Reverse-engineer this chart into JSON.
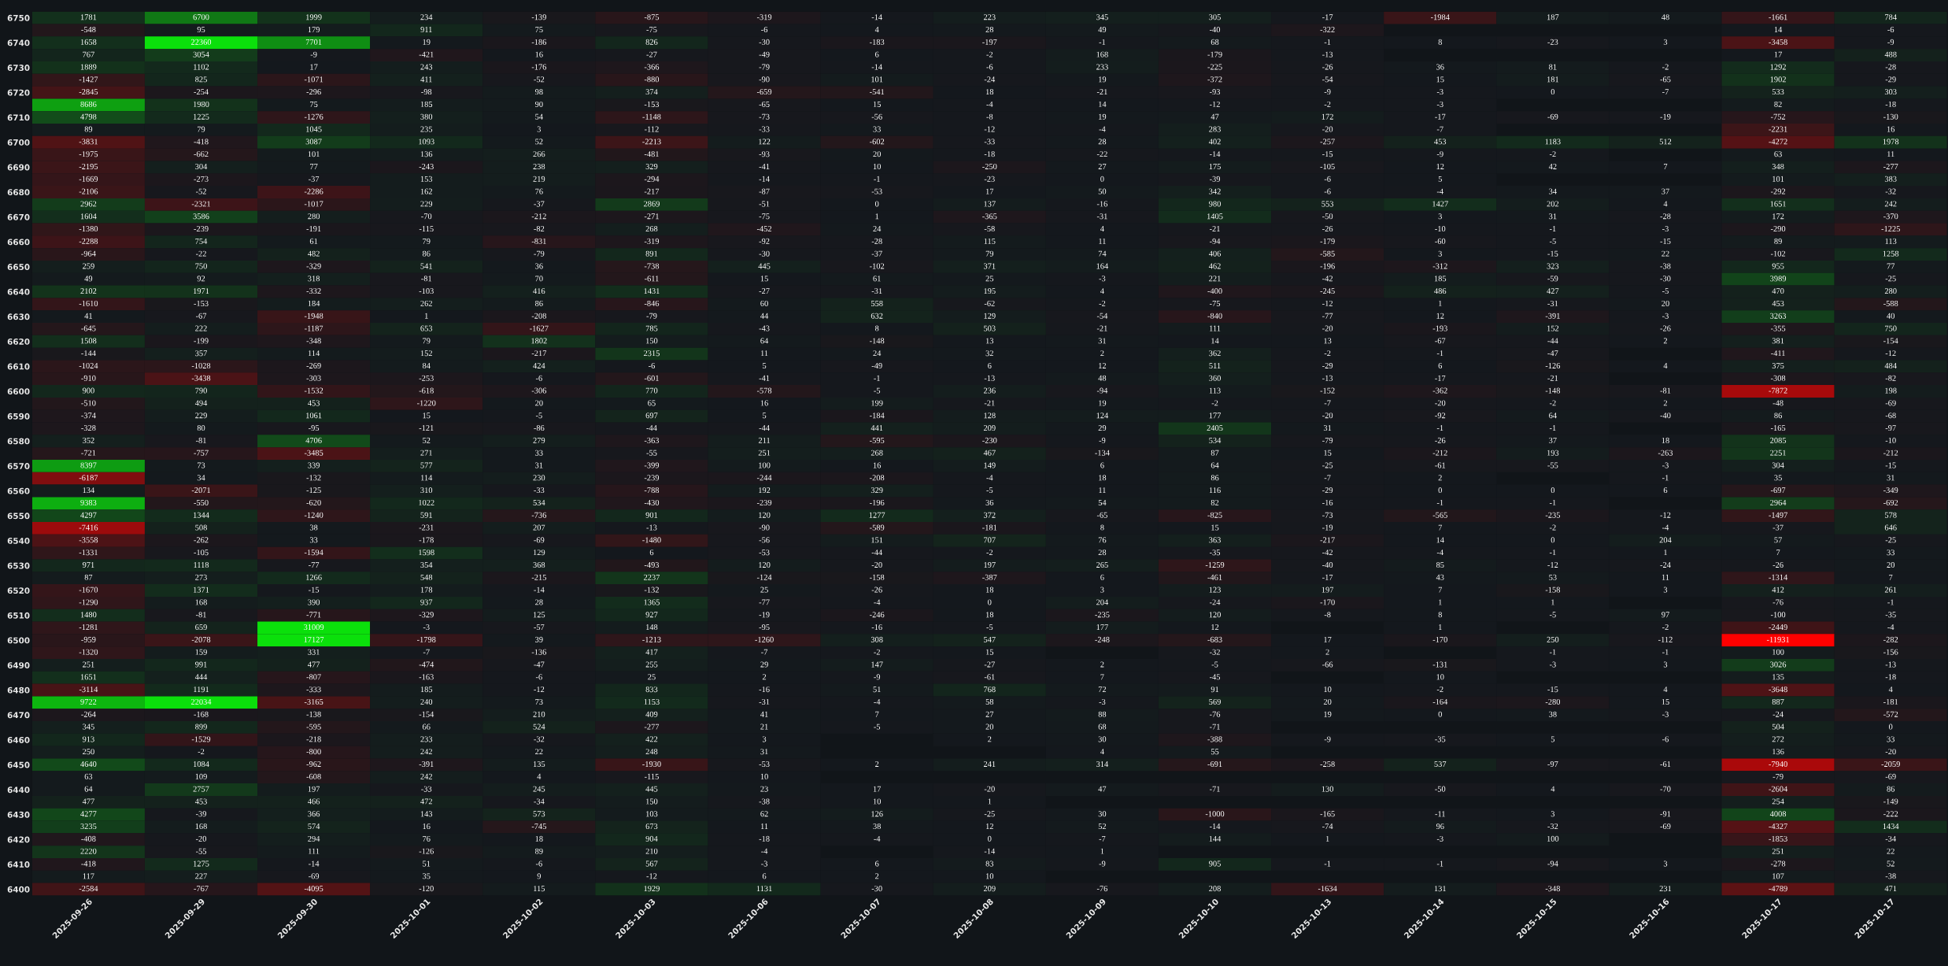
{
  "chart_data": {
    "type": "heatmap",
    "categories": [
      "2025-09-26",
      "2025-09-29",
      "2025-09-30",
      "2025-10-01",
      "2025-10-02",
      "2025-10-03",
      "2025-10-06",
      "2025-10-07",
      "2025-10-08",
      "2025-10-09",
      "2025-10-10",
      "2025-10-13",
      "2025-10-14",
      "2025-10-15",
      "2025-10-16",
      "2025-10-17",
      "2025-10-17"
    ],
    "y_categories": [
      "6750",
      null,
      "6740",
      null,
      "6730",
      null,
      "6720",
      null,
      "6710",
      null,
      "6700",
      null,
      "6690",
      null,
      "6680",
      null,
      "6670",
      null,
      "6660",
      null,
      "6650",
      null,
      "6640",
      null,
      "6630",
      null,
      "6620",
      null,
      "6610",
      null,
      "6600",
      null,
      "6590",
      null,
      "6580",
      null,
      "6570",
      null,
      "6560",
      null,
      "6550",
      null,
      "6540",
      null,
      "6530",
      null,
      "6520",
      null,
      "6510",
      null,
      "6500",
      null,
      "6490",
      null,
      "6480",
      null,
      "6470",
      null,
      "6460",
      null,
      "6450",
      null,
      "6440",
      null,
      "6430",
      null,
      "6420",
      null,
      "6410",
      null,
      "6400"
    ],
    "data_labels": true,
    "cells": [
      [
        1781,
        6700,
        1999,
        234,
        -139,
        -875,
        -319,
        -14,
        223,
        345,
        305,
        -17,
        -1984,
        187,
        48,
        -1661,
        784
      ],
      [
        -548,
        95,
        179,
        911,
        75,
        -75,
        -6,
        4,
        28,
        49,
        -40,
        -322,
        null,
        null,
        null,
        14,
        -6
      ],
      [
        1658,
        22360,
        7701,
        19,
        -186,
        826,
        -30,
        -183,
        -197,
        -1,
        68,
        -1,
        8,
        -23,
        3,
        -3458,
        -9
      ],
      [
        767,
        3054,
        -9,
        -421,
        16,
        -27,
        -49,
        6,
        -2,
        168,
        -179,
        -13,
        null,
        null,
        null,
        17,
        488
      ],
      [
        1889,
        1102,
        17,
        243,
        -176,
        -366,
        -79,
        -14,
        -6,
        233,
        -225,
        -26,
        36,
        81,
        -2,
        1292,
        -28
      ],
      [
        -1427,
        825,
        -1071,
        411,
        -52,
        -880,
        -90,
        101,
        -24,
        19,
        -372,
        -54,
        15,
        181,
        -65,
        1902,
        -29
      ],
      [
        -2845,
        -254,
        -296,
        -98,
        98,
        374,
        -659,
        -541,
        18,
        -21,
        -93,
        -9,
        -3,
        0,
        -7,
        533,
        303
      ],
      [
        8686,
        1980,
        75,
        185,
        90,
        -153,
        -65,
        15,
        -4,
        14,
        -12,
        -2,
        -3,
        null,
        null,
        82,
        -18
      ],
      [
        4798,
        1225,
        -1276,
        380,
        54,
        -1148,
        -73,
        -56,
        -8,
        19,
        47,
        172,
        -17,
        -69,
        -19,
        -752,
        -130
      ],
      [
        89,
        79,
        1045,
        235,
        3,
        -112,
        -33,
        33,
        -12,
        -4,
        283,
        -20,
        -7,
        null,
        null,
        -2231,
        16
      ],
      [
        -3831,
        -418,
        3087,
        1093,
        52,
        -2213,
        122,
        -602,
        -33,
        28,
        402,
        -257,
        453,
        1183,
        512,
        -4272,
        1978
      ],
      [
        -1975,
        -662,
        101,
        136,
        266,
        -481,
        -93,
        20,
        -18,
        -22,
        -14,
        -15,
        -9,
        -2,
        null,
        63,
        11
      ],
      [
        -2195,
        304,
        77,
        -243,
        238,
        329,
        -41,
        10,
        -250,
        27,
        175,
        -105,
        12,
        42,
        7,
        348,
        -277
      ],
      [
        -1669,
        -273,
        -37,
        153,
        219,
        -294,
        -14,
        -1,
        -23,
        0,
        -39,
        -6,
        5,
        null,
        null,
        101,
        383
      ],
      [
        -2106,
        -52,
        -2286,
        162,
        76,
        -217,
        -87,
        -53,
        17,
        50,
        342,
        -6,
        -4,
        34,
        37,
        -292,
        -32
      ],
      [
        2962,
        -2321,
        -1017,
        229,
        -37,
        2869,
        -51,
        0,
        137,
        -16,
        980,
        553,
        1427,
        202,
        4,
        1651,
        242
      ],
      [
        1604,
        3586,
        280,
        -70,
        -212,
        -271,
        -75,
        1,
        -365,
        -31,
        1405,
        -50,
        3,
        31,
        -28,
        172,
        -370
      ],
      [
        -1380,
        -239,
        -191,
        -115,
        -82,
        268,
        -452,
        24,
        -58,
        4,
        -21,
        -26,
        -10,
        -1,
        -3,
        -290,
        -1225
      ],
      [
        -2288,
        754,
        61,
        79,
        -831,
        -319,
        -92,
        -28,
        115,
        11,
        -94,
        -179,
        -60,
        -5,
        -15,
        89,
        113
      ],
      [
        -964,
        -22,
        482,
        86,
        -79,
        891,
        -30,
        -37,
        79,
        74,
        406,
        -585,
        3,
        -15,
        22,
        -102,
        1258
      ],
      [
        259,
        750,
        -329,
        541,
        36,
        -738,
        445,
        -102,
        371,
        164,
        462,
        -196,
        -312,
        323,
        -38,
        955,
        77
      ],
      [
        49,
        92,
        318,
        -81,
        70,
        -611,
        15,
        61,
        25,
        -3,
        221,
        -42,
        185,
        -59,
        -30,
        3989,
        -25
      ],
      [
        2102,
        1971,
        -332,
        -103,
        416,
        1431,
        -27,
        -31,
        195,
        4,
        -400,
        -245,
        486,
        427,
        -5,
        470,
        280
      ],
      [
        -1610,
        -153,
        184,
        262,
        86,
        -846,
        60,
        558,
        -62,
        -2,
        -75,
        -12,
        1,
        -31,
        20,
        453,
        -588
      ],
      [
        41,
        -67,
        -1948,
        1,
        -208,
        -79,
        44,
        632,
        129,
        -54,
        -840,
        -77,
        12,
        -391,
        -3,
        3263,
        40
      ],
      [
        -645,
        222,
        -1187,
        653,
        -1627,
        785,
        -43,
        8,
        503,
        -21,
        111,
        -20,
        -193,
        152,
        -26,
        -355,
        750
      ],
      [
        1508,
        -199,
        -348,
        79,
        1802,
        150,
        64,
        -148,
        13,
        31,
        14,
        13,
        -67,
        -44,
        2,
        381,
        -154
      ],
      [
        -144,
        357,
        114,
        152,
        -217,
        2315,
        11,
        24,
        32,
        2,
        362,
        -2,
        -1,
        -47,
        null,
        -411,
        -12
      ],
      [
        -1024,
        -1028,
        -269,
        84,
        424,
        -6,
        5,
        -49,
        6,
        12,
        511,
        -29,
        6,
        -126,
        4,
        375,
        484
      ],
      [
        -910,
        -3438,
        -303,
        -253,
        -6,
        -601,
        -41,
        -1,
        -13,
        48,
        360,
        -13,
        -17,
        -21,
        null,
        -308,
        -82
      ],
      [
        900,
        790,
        -1532,
        -618,
        -306,
        770,
        -578,
        -5,
        236,
        -94,
        113,
        -152,
        -362,
        -148,
        -81,
        -7872,
        198
      ],
      [
        -510,
        494,
        453,
        -1220,
        20,
        65,
        16,
        199,
        -21,
        19,
        -2,
        -7,
        -20,
        -2,
        2,
        -48,
        -69
      ],
      [
        -374,
        229,
        1061,
        15,
        -5,
        697,
        5,
        -184,
        128,
        124,
        177,
        -20,
        -92,
        64,
        -40,
        86,
        -68
      ],
      [
        -328,
        80,
        -95,
        -121,
        -86,
        -44,
        -44,
        441,
        209,
        29,
        2405,
        31,
        -1,
        -1,
        null,
        -165,
        -97
      ],
      [
        352,
        -81,
        4706,
        52,
        279,
        -363,
        211,
        -595,
        -230,
        -9,
        534,
        -79,
        -26,
        37,
        18,
        2085,
        -10
      ],
      [
        -721,
        -757,
        -3485,
        271,
        33,
        -55,
        251,
        268,
        467,
        -134,
        87,
        15,
        -212,
        193,
        -263,
        2251,
        -212
      ],
      [
        8397,
        73,
        339,
        577,
        31,
        -399,
        100,
        16,
        149,
        6,
        64,
        -25,
        -61,
        -55,
        -3,
        304,
        -15
      ],
      [
        -6187,
        34,
        -132,
        114,
        230,
        -239,
        -244,
        -208,
        -4,
        18,
        86,
        -7,
        2,
        null,
        -1,
        35,
        31
      ],
      [
        134,
        -2071,
        -125,
        310,
        -33,
        -788,
        192,
        329,
        -5,
        11,
        116,
        -29,
        0,
        0,
        6,
        -697,
        -349
      ],
      [
        9383,
        -550,
        -620,
        1022,
        534,
        -430,
        -239,
        -196,
        36,
        54,
        82,
        -16,
        -1,
        -1,
        null,
        2964,
        -692
      ],
      [
        4297,
        1344,
        -1240,
        591,
        -736,
        901,
        120,
        1277,
        372,
        -65,
        -825,
        -73,
        -565,
        -235,
        -12,
        -1497,
        578
      ],
      [
        -7416,
        508,
        38,
        -231,
        207,
        -13,
        -90,
        -589,
        -181,
        8,
        15,
        -19,
        7,
        -2,
        -4,
        -37,
        646
      ],
      [
        -3558,
        -262,
        33,
        -178,
        -69,
        -1480,
        -56,
        151,
        707,
        76,
        363,
        -217,
        14,
        0,
        204,
        57,
        -25
      ],
      [
        -1331,
        -105,
        -1594,
        1598,
        129,
        6,
        -53,
        -44,
        -2,
        28,
        -35,
        -42,
        -4,
        -1,
        1,
        7,
        33
      ],
      [
        971,
        1118,
        -77,
        354,
        368,
        -493,
        120,
        -20,
        197,
        265,
        -1259,
        -40,
        85,
        -12,
        -24,
        -26,
        20
      ],
      [
        87,
        273,
        1266,
        548,
        -215,
        2237,
        -124,
        -158,
        -387,
        6,
        -461,
        -17,
        43,
        53,
        11,
        -1314,
        7
      ],
      [
        -1670,
        1371,
        -15,
        178,
        -14,
        -132,
        25,
        -26,
        18,
        3,
        123,
        197,
        7,
        -158,
        3,
        412,
        261
      ],
      [
        -1290,
        168,
        390,
        937,
        28,
        1365,
        -77,
        -4,
        0,
        204,
        -24,
        -170,
        1,
        1,
        null,
        -76,
        -1
      ],
      [
        1480,
        -81,
        -771,
        -329,
        125,
        927,
        -19,
        -246,
        18,
        -235,
        120,
        -8,
        8,
        -5,
        97,
        -100,
        -35
      ],
      [
        -1281,
        659,
        31009,
        -3,
        -57,
        148,
        -95,
        -16,
        -5,
        177,
        12,
        null,
        1,
        null,
        -2,
        -2449,
        -4
      ],
      [
        -959,
        -2078,
        17127,
        -1798,
        39,
        -1213,
        -1260,
        308,
        547,
        -248,
        -683,
        17,
        -170,
        250,
        -112,
        -11931,
        -282
      ],
      [
        -1320,
        159,
        331,
        -7,
        -136,
        417,
        -7,
        -2,
        15,
        null,
        -32,
        2,
        null,
        -1,
        -1,
        100,
        -156
      ],
      [
        251,
        991,
        477,
        -474,
        -47,
        255,
        29,
        147,
        -27,
        2,
        -5,
        -66,
        -131,
        -3,
        3,
        3026,
        -13
      ],
      [
        1651,
        444,
        -807,
        -163,
        -6,
        25,
        2,
        -9,
        -61,
        7,
        -45,
        null,
        10,
        null,
        null,
        135,
        -18
      ],
      [
        -3114,
        1191,
        -333,
        185,
        -12,
        833,
        -16,
        51,
        768,
        72,
        91,
        10,
        -2,
        -15,
        4,
        -3648,
        4
      ],
      [
        9722,
        22034,
        -3165,
        240,
        73,
        1153,
        -31,
        -4,
        58,
        -3,
        569,
        20,
        -164,
        -280,
        15,
        887,
        -181
      ],
      [
        -264,
        -168,
        -138,
        -154,
        210,
        409,
        41,
        7,
        27,
        88,
        -76,
        19,
        0,
        38,
        -3,
        -24,
        -572
      ],
      [
        345,
        899,
        -595,
        66,
        524,
        -277,
        21,
        -5,
        20,
        68,
        -71,
        null,
        null,
        null,
        null,
        504,
        0
      ],
      [
        913,
        -1529,
        -218,
        233,
        -32,
        422,
        3,
        null,
        2,
        30,
        -388,
        -9,
        -35,
        5,
        -6,
        272,
        33
      ],
      [
        250,
        -2,
        -800,
        242,
        22,
        248,
        31,
        null,
        null,
        4,
        55,
        null,
        null,
        null,
        null,
        136,
        -20
      ],
      [
        4640,
        1084,
        -962,
        -391,
        135,
        -1930,
        -53,
        2,
        241,
        314,
        -691,
        -258,
        537,
        -97,
        -61,
        -7940,
        -2059
      ],
      [
        63,
        109,
        -608,
        242,
        4,
        -115,
        10,
        null,
        null,
        null,
        null,
        null,
        null,
        null,
        null,
        -79,
        -69
      ],
      [
        64,
        2757,
        197,
        -33,
        245,
        445,
        23,
        17,
        -20,
        47,
        -71,
        130,
        -50,
        4,
        -70,
        -2604,
        86
      ],
      [
        477,
        453,
        466,
        472,
        -34,
        150,
        -38,
        10,
        1,
        null,
        null,
        null,
        null,
        null,
        null,
        254,
        -149
      ],
      [
        4277,
        -39,
        366,
        143,
        573,
        103,
        62,
        126,
        -25,
        30,
        -1000,
        -165,
        -11,
        3,
        -91,
        4008,
        -222
      ],
      [
        3235,
        168,
        574,
        16,
        -745,
        673,
        11,
        38,
        12,
        52,
        -14,
        -74,
        96,
        -32,
        -69,
        -4327,
        1434
      ],
      [
        -408,
        -20,
        294,
        76,
        18,
        904,
        -18,
        -4,
        0,
        -7,
        144,
        1,
        -3,
        100,
        null,
        -1853,
        -34
      ],
      [
        2220,
        -55,
        111,
        -126,
        89,
        210,
        -4,
        null,
        -14,
        1,
        null,
        null,
        null,
        null,
        null,
        251,
        22
      ],
      [
        -418,
        1275,
        -14,
        51,
        -6,
        567,
        -3,
        6,
        83,
        -9,
        905,
        -1,
        -1,
        -94,
        3,
        -278,
        52
      ],
      [
        117,
        227,
        -69,
        35,
        9,
        -12,
        6,
        2,
        10,
        null,
        null,
        null,
        null,
        null,
        null,
        107,
        -38
      ],
      [
        -2584,
        -767,
        -4095,
        -120,
        115,
        1929,
        1131,
        -30,
        209,
        -76,
        208,
        -1634,
        131,
        -348,
        231,
        -4789,
        471
      ]
    ]
  }
}
